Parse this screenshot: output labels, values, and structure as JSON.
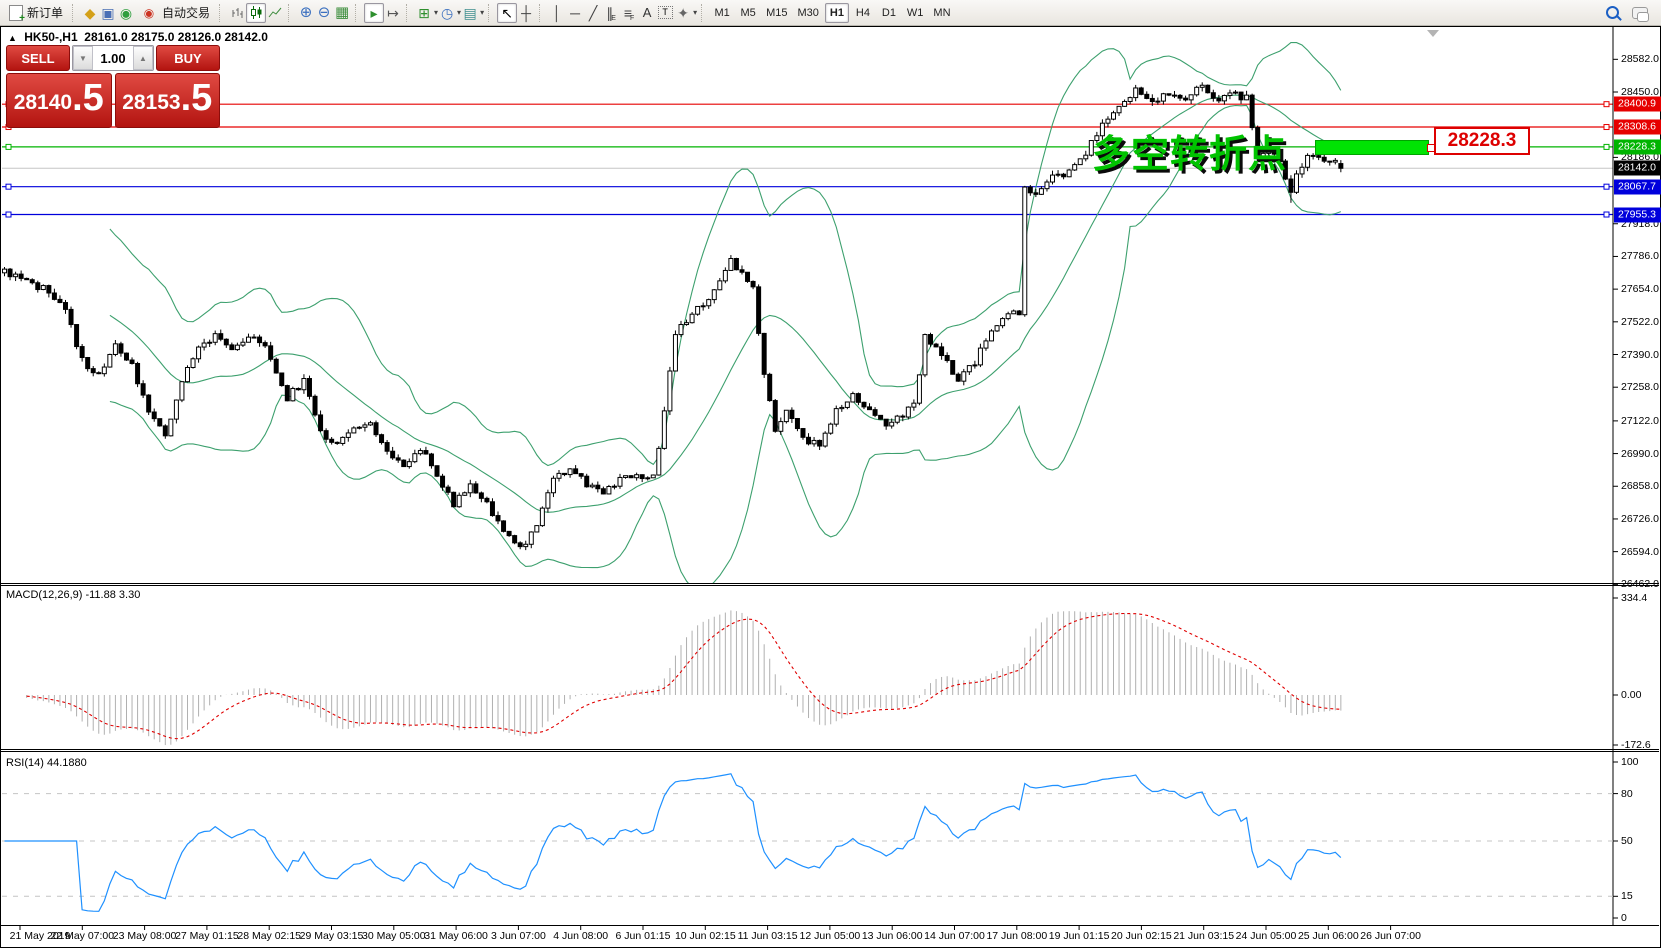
{
  "toolbar": {
    "new_order": "新订单",
    "auto_trading": "自动交易",
    "timeframes": [
      "M1",
      "M5",
      "M15",
      "M30",
      "H1",
      "H4",
      "D1",
      "W1",
      "MN"
    ],
    "active_timeframe": "H1",
    "icons": {
      "new-chart-icon": "◆",
      "metaeditor-icon": "▣",
      "signals-icon": "◉",
      "auto-trading-icon": "◉",
      "zoom-in-icon": "⊕",
      "zoom-out-icon": "⊖",
      "tile-windows-icon": "▦",
      "auto-scroll-icon": "▸",
      "chart-shift-icon": "↦",
      "indicators-icon": "⊞",
      "periods-icon": "◷",
      "template-icon": "▤",
      "cursor-icon": "↖",
      "crosshair-icon": "┼",
      "vline-icon": "│",
      "hline-icon": "─",
      "trendline-icon": "╱",
      "channel-icon": "∥",
      "fibonacci-icon": "≡",
      "text-icon": "A",
      "label-icon": "T",
      "arrows-icon": "✦",
      "dropdown-caret": "▾"
    }
  },
  "chart_header": {
    "collapse_marker": "▲",
    "symbol_period": "HK50-,H1",
    "open": "28161.0",
    "high": "28175.0",
    "low": "28126.0",
    "close": "28142.0"
  },
  "trade_panel": {
    "sell_label": "SELL",
    "buy_label": "BUY",
    "volume": "1.00",
    "spin_down": "▼",
    "spin_up": "▲",
    "sell_price_main": "28140",
    "sell_price_big": ".5",
    "buy_price_main": "28153",
    "buy_price_big": ".5"
  },
  "annotation": {
    "text": "多空转折点",
    "price_flag": "28228.3"
  },
  "macd_panel": {
    "label": "MACD(12,26,9) -11.88 3.30",
    "axis_max": "334.4",
    "axis_zero": "0.00",
    "axis_min": "-172.6"
  },
  "rsi_panel": {
    "label": "RSI(14) 44.1880",
    "axis_labels": [
      {
        "text": "100",
        "value": 100
      },
      {
        "text": "80",
        "value": 80
      },
      {
        "text": "50",
        "value": 50
      },
      {
        "text": "15",
        "value": 15
      },
      {
        "text": "0",
        "value": 0
      }
    ],
    "level_lines": [
      80,
      50,
      15
    ]
  },
  "price_axis": {
    "ticks": [
      "28582.0",
      "28450.0",
      "28186.0",
      "27918.0",
      "27786.0",
      "27654.0",
      "27522.0",
      "27390.0",
      "27258.0",
      "27122.0",
      "26990.0",
      "26858.0",
      "26726.0",
      "26594.0",
      "26462.0"
    ],
    "flags": [
      {
        "label": "28400.9",
        "price": 28400.9,
        "color": "#e60000",
        "type": "hline"
      },
      {
        "label": "28308.6",
        "price": 28308.6,
        "color": "#e60000",
        "type": "hline"
      },
      {
        "label": "28228.3",
        "price": 28228.3,
        "color": "#00b400",
        "type": "hline"
      },
      {
        "label": "28142.0",
        "price": 28142.0,
        "color": "#000000",
        "type": "current"
      },
      {
        "label": "28067.7",
        "price": 28067.7,
        "color": "#0000dc",
        "type": "hline"
      },
      {
        "label": "27955.3",
        "price": 27955.3,
        "color": "#0000dc",
        "type": "hline"
      }
    ]
  },
  "time_axis": [
    "21 May 2019",
    "22 May 07:00",
    "23 May 08:00",
    "27 May 01:15",
    "28 May 02:15",
    "29 May 03:15",
    "30 May 05:00",
    "31 May 06:00",
    "3 Jun 07:00",
    "4 Jun 08:00",
    "6 Jun 01:15",
    "10 Jun 02:15",
    "11 Jun 03:15",
    "12 Jun 05:00",
    "13 Jun 06:00",
    "14 Jun 07:00",
    "17 Jun 08:00",
    "19 Jun 01:15",
    "20 Jun 02:15",
    "21 Jun 03:15",
    "24 Jun 05:00",
    "25 Jun 06:00",
    "26 Jun 07:00"
  ],
  "chart_data": {
    "type": "candlestick",
    "symbol": "HK50-",
    "period": "H1",
    "bars_count": 242,
    "last_ohlc": {
      "open": 28161.0,
      "high": 28175.0,
      "low": 28126.0,
      "close": 28142.0
    },
    "ylim_main": [
      26462,
      28582
    ],
    "ylim_macd": [
      -172.6,
      334.4
    ],
    "ylim_rsi": [
      0,
      100
    ],
    "up_color": "#ffffff",
    "down_color": "#000000",
    "bollinger_color": "#3da06e",
    "macd_hist_color": "#b0b0b0",
    "macd_signal_color": "#e00000",
    "rsi_color": "#1e90ff",
    "current_price": 28142.0,
    "hlines": [
      {
        "price": 28400.9,
        "color": "#e60000"
      },
      {
        "price": 28308.6,
        "color": "#e60000"
      },
      {
        "price": 28228.3,
        "color": "#00b400"
      },
      {
        "price": 28067.7,
        "color": "#0000dc"
      },
      {
        "price": 27955.3,
        "color": "#0000dc"
      }
    ],
    "indicators": [
      {
        "name": "Bollinger Bands",
        "period": 20,
        "deviation": 2.3
      },
      {
        "name": "MACD",
        "fast": 12,
        "slow": 26,
        "signal": 9,
        "value": -11.88,
        "signal_value": 3.3
      },
      {
        "name": "RSI",
        "period": 14,
        "value": 44.188
      }
    ],
    "price_path": [
      [
        0,
        27720
      ],
      [
        4,
        27680
      ],
      [
        8,
        27645
      ],
      [
        11,
        27560
      ],
      [
        14,
        27370
      ],
      [
        17,
        27300
      ],
      [
        20,
        27430
      ],
      [
        23,
        27340
      ],
      [
        26,
        27160
      ],
      [
        29,
        27075
      ],
      [
        32,
        27280
      ],
      [
        35,
        27420
      ],
      [
        38,
        27470
      ],
      [
        41,
        27420
      ],
      [
        45,
        27470
      ],
      [
        48,
        27380
      ],
      [
        51,
        27215
      ],
      [
        54,
        27285
      ],
      [
        57,
        27075
      ],
      [
        60,
        27030
      ],
      [
        63,
        27090
      ],
      [
        66,
        27120
      ],
      [
        69,
        26990
      ],
      [
        72,
        26950
      ],
      [
        75,
        27010
      ],
      [
        78,
        26900
      ],
      [
        81,
        26790
      ],
      [
        84,
        26865
      ],
      [
        87,
        26790
      ],
      [
        90,
        26680
      ],
      [
        93,
        26600
      ],
      [
        96,
        26690
      ],
      [
        99,
        26900
      ],
      [
        102,
        26930
      ],
      [
        105,
        26870
      ],
      [
        108,
        26830
      ],
      [
        111,
        26880
      ],
      [
        114,
        26905
      ],
      [
        117,
        26890
      ],
      [
        119,
        27150
      ],
      [
        121,
        27470
      ],
      [
        124,
        27550
      ],
      [
        127,
        27610
      ],
      [
        129,
        27680
      ],
      [
        131,
        27780
      ],
      [
        133,
        27710
      ],
      [
        135,
        27660
      ],
      [
        137,
        27300
      ],
      [
        139,
        27090
      ],
      [
        141,
        27150
      ],
      [
        144,
        27050
      ],
      [
        147,
        27020
      ],
      [
        150,
        27170
      ],
      [
        153,
        27230
      ],
      [
        156,
        27160
      ],
      [
        159,
        27110
      ],
      [
        162,
        27150
      ],
      [
        164,
        27180
      ],
      [
        166,
        27460
      ],
      [
        169,
        27390
      ],
      [
        172,
        27290
      ],
      [
        175,
        27360
      ],
      [
        178,
        27500
      ],
      [
        181,
        27560
      ],
      [
        183,
        27560
      ],
      [
        184,
        28060
      ],
      [
        186,
        28040
      ],
      [
        189,
        28100
      ],
      [
        192,
        28130
      ],
      [
        195,
        28200
      ],
      [
        198,
        28320
      ],
      [
        201,
        28400
      ],
      [
        204,
        28460
      ],
      [
        207,
        28420
      ],
      [
        210,
        28440
      ],
      [
        213,
        28420
      ],
      [
        216,
        28490
      ],
      [
        218,
        28420
      ],
      [
        221,
        28440
      ],
      [
        224,
        28430
      ],
      [
        226,
        28190
      ],
      [
        228,
        28240
      ],
      [
        230,
        28160
      ],
      [
        232,
        28060
      ],
      [
        234,
        28160
      ],
      [
        236,
        28200
      ],
      [
        238,
        28160
      ],
      [
        240,
        28170
      ],
      [
        241,
        28142
      ]
    ]
  }
}
